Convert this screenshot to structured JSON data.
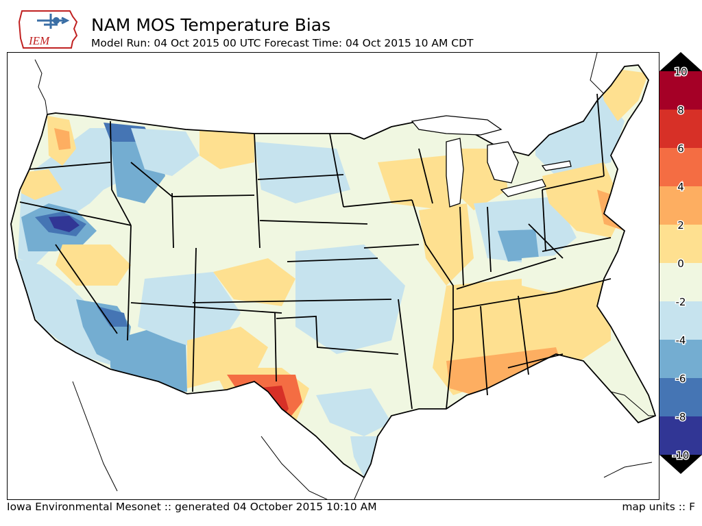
{
  "header": {
    "logo_text": "IEM",
    "title": "NAM MOS Temperature Bias",
    "subtitle": "Model Run: 04 Oct 2015 00 UTC Forecast Time: 04 Oct 2015 10 AM CDT"
  },
  "footer": {
    "generated": "Iowa Environmental Mesonet :: generated 04 October 2015 10:10 AM",
    "units": "map units :: F"
  },
  "colorbar": {
    "levels": [
      "10",
      "8",
      "6",
      "4",
      "2",
      "0",
      "-2",
      "-4",
      "-6",
      "-8",
      "-10"
    ],
    "colors": [
      "#a50026",
      "#d73027",
      "#f46d43",
      "#fdae61",
      "#fee090",
      "#f0f7e1",
      "#c6e3ee",
      "#74add1",
      "#4575b4",
      "#313695"
    ],
    "over_color": "#000000",
    "under_color": "#000000"
  },
  "map": {
    "palette": {
      "neutral": "#f0f7e1",
      "light_warm": "#fee090",
      "warm": "#fdae61",
      "hot": "#f46d43",
      "very_hot": "#d73027",
      "light_cool": "#c6e3ee",
      "cool": "#74add1",
      "cold": "#4575b4",
      "very_cold": "#313695"
    }
  }
}
